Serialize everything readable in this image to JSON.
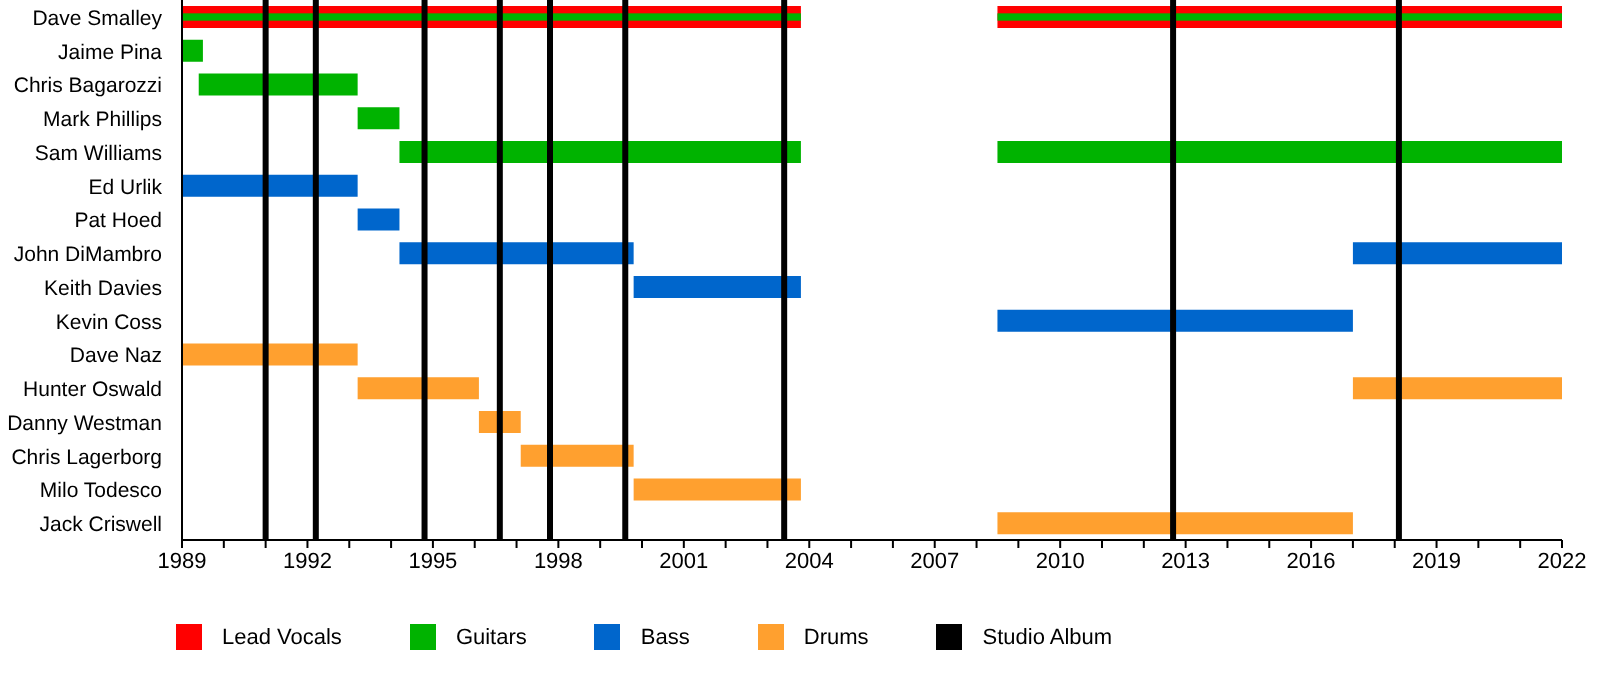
{
  "chart_data": {
    "type": "bar",
    "orientation": "horizontal",
    "categories": [
      "Dave Smalley",
      "Jaime Pina",
      "Chris Bagarozzi",
      "Mark Phillips",
      "Sam Williams",
      "Ed Urlik",
      "Pat Hoed",
      "John DiMambro",
      "Keith Davies",
      "Kevin Coss",
      "Dave Naz",
      "Hunter Oswald",
      "Danny Westman",
      "Chris Lagerborg",
      "Milo Todesco",
      "Jack Criswell"
    ],
    "series": [
      {
        "name": "Lead Vocals",
        "color": "#ff0000",
        "base": [
          1989,
          null,
          null,
          null,
          null,
          null,
          null,
          null,
          null,
          null,
          null,
          null,
          null,
          null,
          null,
          null
        ],
        "values": [
          14.8,
          null,
          null,
          null,
          null,
          null,
          null,
          null,
          null,
          null,
          null,
          null,
          null,
          null,
          null,
          null
        ]
      },
      {
        "name": "Guitars",
        "color": "#00b300",
        "base": [
          1989,
          1989,
          1989.4,
          1993.2,
          1994.2,
          null,
          null,
          null,
          null,
          null,
          null,
          null,
          null,
          null,
          null,
          null
        ],
        "values": [
          14.8,
          0.5,
          3.8,
          1.0,
          9.6,
          null,
          null,
          null,
          null,
          null,
          null,
          null,
          null,
          null,
          null,
          null
        ]
      },
      {
        "name": "Bass",
        "color": "#0066cc",
        "base": [
          null,
          null,
          null,
          null,
          null,
          1989,
          1993.2,
          1994.2,
          1999.8,
          2008.5,
          null,
          null,
          null,
          null,
          null,
          null
        ],
        "values": [
          null,
          null,
          null,
          null,
          null,
          4.2,
          1.0,
          5.6,
          4.0,
          8.5,
          null,
          null,
          null,
          null,
          null,
          null
        ]
      },
      {
        "name": "Drums",
        "color": "#ffa02f",
        "base": [
          null,
          null,
          null,
          null,
          null,
          null,
          null,
          null,
          null,
          null,
          1989,
          1993.2,
          1996.1,
          1997.1,
          1999.8,
          2008.5
        ],
        "values": [
          null,
          null,
          null,
          null,
          null,
          null,
          null,
          null,
          null,
          null,
          4.2,
          2.9,
          1.0,
          2.7,
          4.0,
          8.5
        ]
      },
      {
        "color": "#ff0000",
        "base": [
          2008.5,
          null,
          null,
          null,
          null,
          null,
          null,
          null,
          null,
          null,
          null,
          null,
          null,
          null,
          null,
          null
        ],
        "values": [
          13.5,
          null,
          null,
          null,
          null,
          null,
          null,
          null,
          null,
          null,
          null,
          null,
          null,
          null,
          null,
          null
        ]
      },
      {
        "color": "#00b300",
        "base": [
          2008.5,
          null,
          null,
          null,
          2008.5,
          null,
          null,
          null,
          null,
          null,
          null,
          null,
          null,
          null,
          null,
          null
        ],
        "values": [
          13.5,
          null,
          null,
          null,
          13.5,
          null,
          null,
          null,
          null,
          null,
          null,
          null,
          null,
          null,
          null,
          null
        ]
      },
      {
        "color": "#0066cc",
        "base": [
          null,
          null,
          null,
          null,
          null,
          null,
          null,
          2017,
          null,
          null,
          null,
          null,
          null,
          null,
          null,
          null
        ],
        "values": [
          null,
          null,
          null,
          null,
          null,
          null,
          null,
          5,
          null,
          null,
          null,
          null,
          null,
          null,
          null,
          null
        ]
      },
      {
        "color": "#ffa02f",
        "base": [
          null,
          null,
          null,
          null,
          null,
          null,
          null,
          null,
          null,
          null,
          null,
          2017,
          null,
          null,
          null,
          null
        ],
        "values": [
          null,
          null,
          null,
          null,
          null,
          null,
          null,
          null,
          null,
          null,
          null,
          5,
          null,
          null,
          null,
          null
        ]
      }
    ],
    "xlim": [
      1989,
      2022
    ],
    "xticks": [
      1989,
      {
        "value": 1990,
        "label": null
      },
      {
        "value": 1991,
        "label": null
      },
      1992,
      {
        "value": 1993,
        "label": null
      },
      {
        "value": 1994,
        "label": null
      },
      1995,
      {
        "value": 1996,
        "label": null
      },
      {
        "value": 1997,
        "label": null
      },
      1998,
      {
        "value": 1999,
        "label": null
      },
      {
        "value": 2000,
        "label": null
      },
      2001,
      {
        "value": 2002,
        "label": null
      },
      {
        "value": 2003,
        "label": null
      },
      2004,
      {
        "value": 2005,
        "label": null
      },
      {
        "value": 2006,
        "label": null
      },
      2007,
      {
        "value": 2008,
        "label": null
      },
      {
        "value": 2009,
        "label": null
      },
      2010,
      {
        "value": 2011,
        "label": null
      },
      {
        "value": 2012,
        "label": null
      },
      2013,
      {
        "value": 2014,
        "label": null
      },
      {
        "value": 2015,
        "label": null
      },
      2016,
      {
        "value": 2017,
        "label": null
      },
      {
        "value": 2018,
        "label": null
      },
      2019,
      {
        "value": 2020,
        "label": null
      },
      {
        "value": 2021,
        "label": null
      },
      2022
    ],
    "ref_lines": [
      {
        "axis": "x",
        "value": 1991.0,
        "label": "Studio Album",
        "color": "#000000"
      },
      {
        "axis": "x",
        "value": 1992.2,
        "color": "#000000"
      },
      {
        "axis": "x",
        "value": 1994.8,
        "color": "#000000"
      },
      {
        "axis": "x",
        "value": 1996.6,
        "color": "#000000"
      },
      {
        "axis": "x",
        "value": 1997.8,
        "color": "#000000"
      },
      {
        "axis": "x",
        "value": 1999.6,
        "color": "#000000"
      },
      {
        "axis": "x",
        "value": 2003.4,
        "color": "#000000"
      },
      {
        "axis": "x",
        "value": 2012.7,
        "color": "#000000"
      },
      {
        "axis": "x",
        "value": 2018.1,
        "color": "#000000"
      }
    ],
    "grid": false,
    "legend": "bottom"
  }
}
